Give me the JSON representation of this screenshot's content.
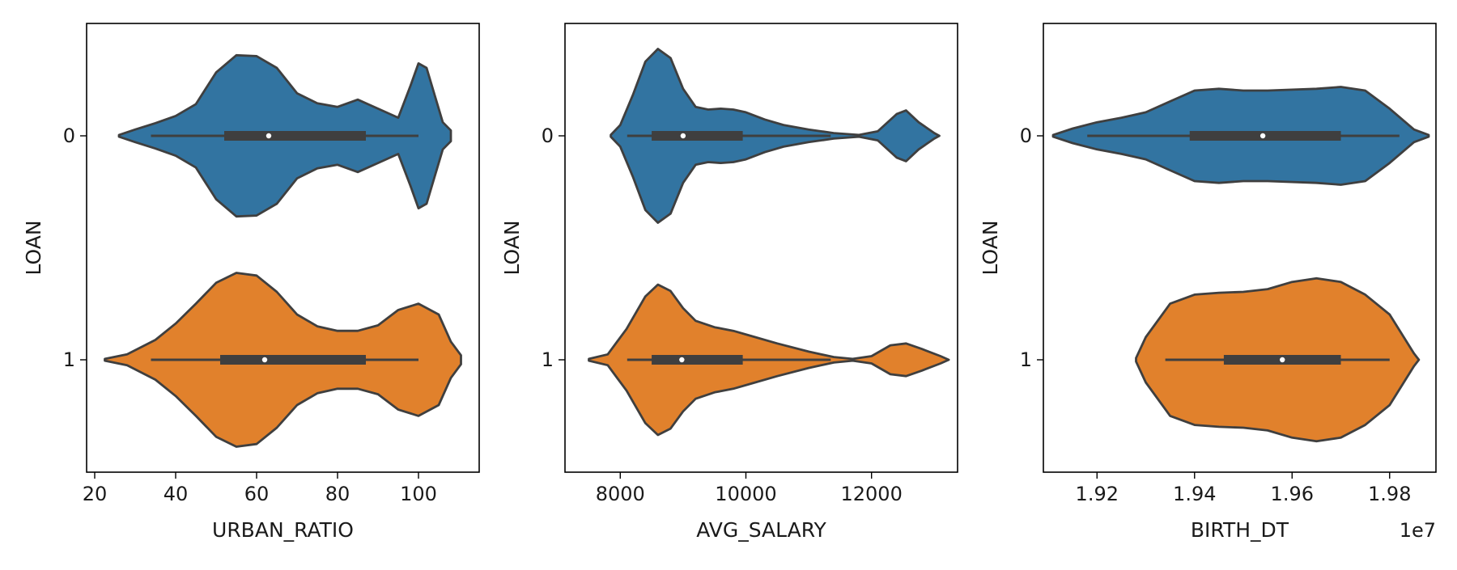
{
  "chart_data": [
    {
      "type": "violin",
      "orientation": "horizontal",
      "xlabel": "URBAN_RATIO",
      "ylabel": "LOAN",
      "xlim": [
        18,
        115
      ],
      "xticks": [
        {
          "value": 20,
          "label": "20"
        },
        {
          "value": 40,
          "label": "40"
        },
        {
          "value": 60,
          "label": "60"
        },
        {
          "value": 80,
          "label": "80"
        },
        {
          "value": 100,
          "label": "100"
        }
      ],
      "offset_label": "",
      "categories": [
        {
          "label": "0",
          "color": "#3274a1",
          "box": {
            "whisker_low": 33.9,
            "q1": 52,
            "median": 63,
            "q3": 87,
            "whisker_high": 100
          },
          "density": [
            [
              26,
              0.01
            ],
            [
              30,
              0.07
            ],
            [
              35,
              0.14
            ],
            [
              40,
              0.22
            ],
            [
              45,
              0.35
            ],
            [
              50,
              0.7
            ],
            [
              55,
              0.89
            ],
            [
              60,
              0.88
            ],
            [
              65,
              0.75
            ],
            [
              70,
              0.47
            ],
            [
              75,
              0.36
            ],
            [
              80,
              0.32
            ],
            [
              85,
              0.4
            ],
            [
              90,
              0.3
            ],
            [
              95,
              0.2
            ],
            [
              98,
              0.55
            ],
            [
              100,
              0.8
            ],
            [
              102,
              0.75
            ],
            [
              104,
              0.45
            ],
            [
              106,
              0.15
            ],
            [
              108,
              0.06
            ],
            [
              108,
              0
            ]
          ]
        },
        {
          "label": "1",
          "color": "#e1812c",
          "box": {
            "whisker_low": 33.9,
            "q1": 51,
            "median": 62,
            "q3": 87,
            "whisker_high": 100
          },
          "density": [
            [
              22.5,
              0.01
            ],
            [
              28,
              0.06
            ],
            [
              35,
              0.22
            ],
            [
              40,
              0.4
            ],
            [
              45,
              0.62
            ],
            [
              50,
              0.85
            ],
            [
              55,
              0.96
            ],
            [
              60,
              0.93
            ],
            [
              65,
              0.75
            ],
            [
              70,
              0.5
            ],
            [
              75,
              0.37
            ],
            [
              80,
              0.32
            ],
            [
              85,
              0.32
            ],
            [
              90,
              0.38
            ],
            [
              95,
              0.55
            ],
            [
              100,
              0.62
            ],
            [
              105,
              0.5
            ],
            [
              108,
              0.2
            ],
            [
              110.5,
              0.05
            ],
            [
              110.5,
              0
            ]
          ]
        }
      ]
    },
    {
      "type": "violin",
      "orientation": "horizontal",
      "xlabel": "AVG_SALARY",
      "ylabel": "LOAN",
      "xlim": [
        7120,
        13370
      ],
      "xticks": [
        {
          "value": 8000,
          "label": "8000"
        },
        {
          "value": 10000,
          "label": "10000"
        },
        {
          "value": 12000,
          "label": "12000"
        }
      ],
      "offset_label": "",
      "categories": [
        {
          "label": "0",
          "color": "#3274a1",
          "box": {
            "whisker_low": 8110,
            "q1": 8500,
            "median": 9000,
            "q3": 9950,
            "whisker_high": 11350
          },
          "density": [
            [
              7850,
              0.01
            ],
            [
              8000,
              0.12
            ],
            [
              8200,
              0.45
            ],
            [
              8400,
              0.82
            ],
            [
              8600,
              0.96
            ],
            [
              8800,
              0.86
            ],
            [
              9000,
              0.52
            ],
            [
              9200,
              0.32
            ],
            [
              9400,
              0.29
            ],
            [
              9600,
              0.3
            ],
            [
              9800,
              0.29
            ],
            [
              10000,
              0.26
            ],
            [
              10300,
              0.18
            ],
            [
              10600,
              0.12
            ],
            [
              11000,
              0.07
            ],
            [
              11400,
              0.03
            ],
            [
              11800,
              0.01
            ],
            [
              12100,
              0.05
            ],
            [
              12400,
              0.24
            ],
            [
              12550,
              0.28
            ],
            [
              12750,
              0.15
            ],
            [
              13000,
              0.03
            ],
            [
              13080,
              0
            ]
          ]
        },
        {
          "label": "1",
          "color": "#e1812c",
          "box": {
            "whisker_low": 8110,
            "q1": 8500,
            "median": 8980,
            "q3": 9950,
            "whisker_high": 11350
          },
          "density": [
            [
              7500,
              0.01
            ],
            [
              7800,
              0.06
            ],
            [
              8100,
              0.34
            ],
            [
              8400,
              0.7
            ],
            [
              8600,
              0.83
            ],
            [
              8800,
              0.76
            ],
            [
              9000,
              0.57
            ],
            [
              9200,
              0.43
            ],
            [
              9500,
              0.36
            ],
            [
              9800,
              0.32
            ],
            [
              10100,
              0.26
            ],
            [
              10500,
              0.18
            ],
            [
              11000,
              0.09
            ],
            [
              11400,
              0.03
            ],
            [
              11700,
              0.01
            ],
            [
              12000,
              0.04
            ],
            [
              12300,
              0.16
            ],
            [
              12550,
              0.18
            ],
            [
              12800,
              0.12
            ],
            [
              13100,
              0.04
            ],
            [
              13230,
              0
            ]
          ]
        }
      ]
    },
    {
      "type": "violin",
      "orientation": "horizontal",
      "xlabel": "BIRTH_DT",
      "ylabel": "LOAN",
      "xlim": [
        19090000,
        19895000
      ],
      "xticks": [
        {
          "value": 19200000,
          "label": "1.92"
        },
        {
          "value": 19400000,
          "label": "1.94"
        },
        {
          "value": 19600000,
          "label": "1.96"
        },
        {
          "value": 19800000,
          "label": "1.98"
        }
      ],
      "offset_label": "1e7",
      "categories": [
        {
          "label": "0",
          "color": "#3274a1",
          "box": {
            "whisker_low": 19180000,
            "q1": 19390000,
            "median": 19540000,
            "q3": 19700000,
            "whisker_high": 19820000
          },
          "density": [
            [
              19110000,
              0.01
            ],
            [
              19150000,
              0.08
            ],
            [
              19200000,
              0.15
            ],
            [
              19250000,
              0.2
            ],
            [
              19300000,
              0.26
            ],
            [
              19350000,
              0.38
            ],
            [
              19400000,
              0.5
            ],
            [
              19450000,
              0.52
            ],
            [
              19500000,
              0.5
            ],
            [
              19550000,
              0.5
            ],
            [
              19600000,
              0.51
            ],
            [
              19650000,
              0.52
            ],
            [
              19700000,
              0.54
            ],
            [
              19750000,
              0.5
            ],
            [
              19800000,
              0.3
            ],
            [
              19850000,
              0.07
            ],
            [
              19880000,
              0.01
            ],
            [
              19880000,
              0
            ]
          ]
        },
        {
          "label": "1",
          "color": "#e1812c",
          "box": {
            "whisker_low": 19340000,
            "q1": 19460000,
            "median": 19580000,
            "q3": 19700000,
            "whisker_high": 19800000
          },
          "density": [
            [
              19280000,
              0.02
            ],
            [
              19300000,
              0.25
            ],
            [
              19350000,
              0.62
            ],
            [
              19400000,
              0.72
            ],
            [
              19450000,
              0.74
            ],
            [
              19500000,
              0.75
            ],
            [
              19550000,
              0.78
            ],
            [
              19600000,
              0.86
            ],
            [
              19650000,
              0.9
            ],
            [
              19700000,
              0.86
            ],
            [
              19750000,
              0.72
            ],
            [
              19800000,
              0.5
            ],
            [
              19850000,
              0.07
            ],
            [
              19860000,
              0
            ]
          ]
        }
      ]
    }
  ]
}
